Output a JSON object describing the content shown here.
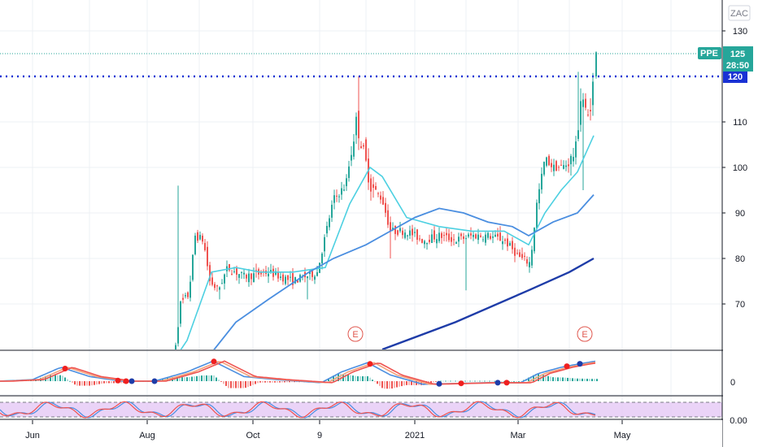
{
  "currency_label": "ZAC",
  "symbol": "PPE",
  "last_price": "125",
  "countdown": "28:50",
  "line_level_label": "120",
  "earnings_markers": [
    "E",
    "E"
  ],
  "colors": {
    "up": "#26a69a",
    "down": "#ef5350",
    "ma_fast": "#4dd0e1",
    "ma_mid": "#4a8ee0",
    "ma_slow": "#1e3ca8",
    "level_line": "#1a32d4",
    "price_tag": "#26a69a",
    "osc_band": "#e5c8f5"
  },
  "chart_data": {
    "type": "candlestick",
    "title": "",
    "y_ticks": [
      70,
      80,
      90,
      100,
      110,
      130
    ],
    "ylim": [
      58,
      133
    ],
    "x_ticks": [
      "Jun",
      "Aug",
      "Oct",
      "9",
      "2021",
      "Mar",
      "May"
    ],
    "horizontal_level": 120,
    "last_price": 125,
    "summary": {
      "period_start": "Jun",
      "period_end": "Mar",
      "low": 55,
      "high": 125
    },
    "moving_averages": [
      {
        "key": "ma_fast",
        "values": [
          [
            0,
            52
          ],
          [
            200,
            54
          ],
          [
            230,
            62
          ],
          [
            260,
            77
          ],
          [
            290,
            78
          ],
          [
            320,
            77
          ],
          [
            360,
            77
          ],
          [
            400,
            78
          ],
          [
            430,
            92
          ],
          [
            455,
            100
          ],
          [
            470,
            98
          ],
          [
            500,
            89
          ],
          [
            540,
            87
          ],
          [
            580,
            86
          ],
          [
            620,
            86
          ],
          [
            650,
            83
          ],
          [
            670,
            90
          ],
          [
            690,
            95
          ],
          [
            710,
            99
          ],
          [
            730,
            107
          ]
        ]
      },
      {
        "key": "ma_mid",
        "values": [
          [
            0,
            50
          ],
          [
            220,
            50
          ],
          [
            250,
            57
          ],
          [
            290,
            66
          ],
          [
            330,
            71
          ],
          [
            380,
            77
          ],
          [
            410,
            80
          ],
          [
            450,
            83
          ],
          [
            480,
            86
          ],
          [
            510,
            89
          ],
          [
            540,
            91
          ],
          [
            570,
            90
          ],
          [
            600,
            88
          ],
          [
            630,
            87
          ],
          [
            650,
            85
          ],
          [
            680,
            88
          ],
          [
            710,
            90
          ],
          [
            730,
            94
          ]
        ]
      },
      {
        "key": "ma_slow",
        "values": [
          [
            470,
            60
          ],
          [
            560,
            66
          ],
          [
            650,
            73
          ],
          [
            700,
            77
          ],
          [
            730,
            80
          ]
        ]
      }
    ],
    "oscillator_upper": {
      "y_ticks": [
        "0"
      ]
    },
    "oscillator_lower": {
      "y_ticks": [
        "0.00"
      ]
    }
  }
}
